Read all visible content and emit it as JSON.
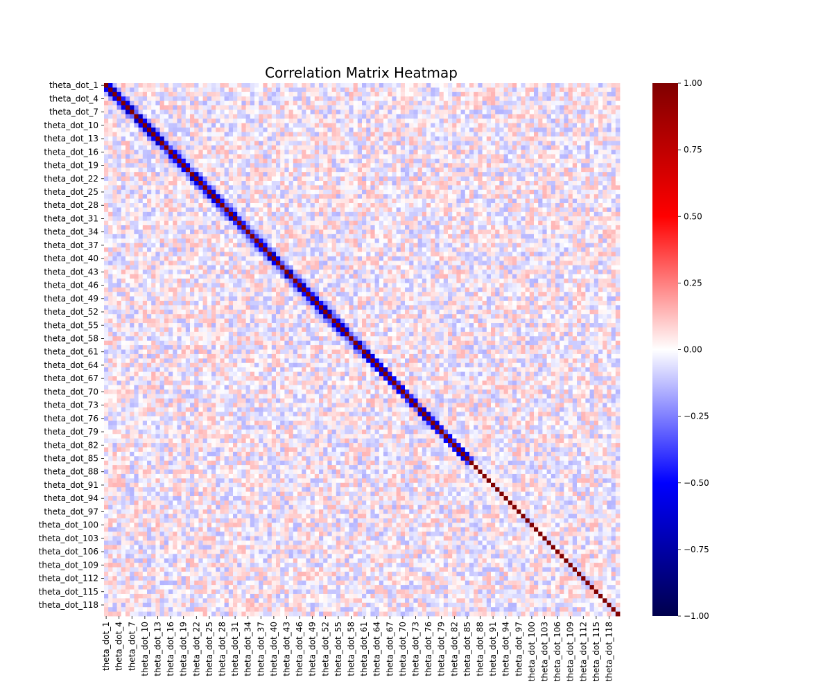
{
  "chart_data": {
    "type": "heatmap",
    "title": "Correlation Matrix Heatmap",
    "variable_prefix": "theta_dot_",
    "n": 120,
    "label_every": 3,
    "tick_labels": [
      "theta_dot_1",
      "theta_dot_4",
      "theta_dot_7",
      "theta_dot_10",
      "theta_dot_13",
      "theta_dot_16",
      "theta_dot_19",
      "theta_dot_22",
      "theta_dot_25",
      "theta_dot_28",
      "theta_dot_31",
      "theta_dot_34",
      "theta_dot_37",
      "theta_dot_40",
      "theta_dot_43",
      "theta_dot_46",
      "theta_dot_49",
      "theta_dot_52",
      "theta_dot_55",
      "theta_dot_58",
      "theta_dot_61",
      "theta_dot_64",
      "theta_dot_67",
      "theta_dot_70",
      "theta_dot_73",
      "theta_dot_76",
      "theta_dot_79",
      "theta_dot_82",
      "theta_dot_85",
      "theta_dot_88",
      "theta_dot_91",
      "theta_dot_94",
      "theta_dot_97",
      "theta_dot_100",
      "theta_dot_103",
      "theta_dot_106",
      "theta_dot_109",
      "theta_dot_112",
      "theta_dot_115",
      "theta_dot_118"
    ],
    "diagonal_value": 1.0,
    "near_diagonal_value": -0.3,
    "off_diagonal_range": [
      -0.15,
      0.15
    ],
    "colormap": "seismic",
    "vmin": -1.0,
    "vmax": 1.0,
    "colorbar_ticks": [
      "1.00",
      "0.75",
      "0.50",
      "0.25",
      "0.00",
      "−0.25",
      "−0.50",
      "−0.75",
      "−1.00"
    ],
    "colorbar_values": [
      1.0,
      0.75,
      0.5,
      0.25,
      0.0,
      -0.25,
      -0.5,
      -0.75,
      -1.0
    ],
    "colors": {
      "min": "#00004c",
      "mid_low": "#0000ff",
      "zero": "#ffffff",
      "mid_high": "#ff0000",
      "max": "#800000"
    }
  }
}
